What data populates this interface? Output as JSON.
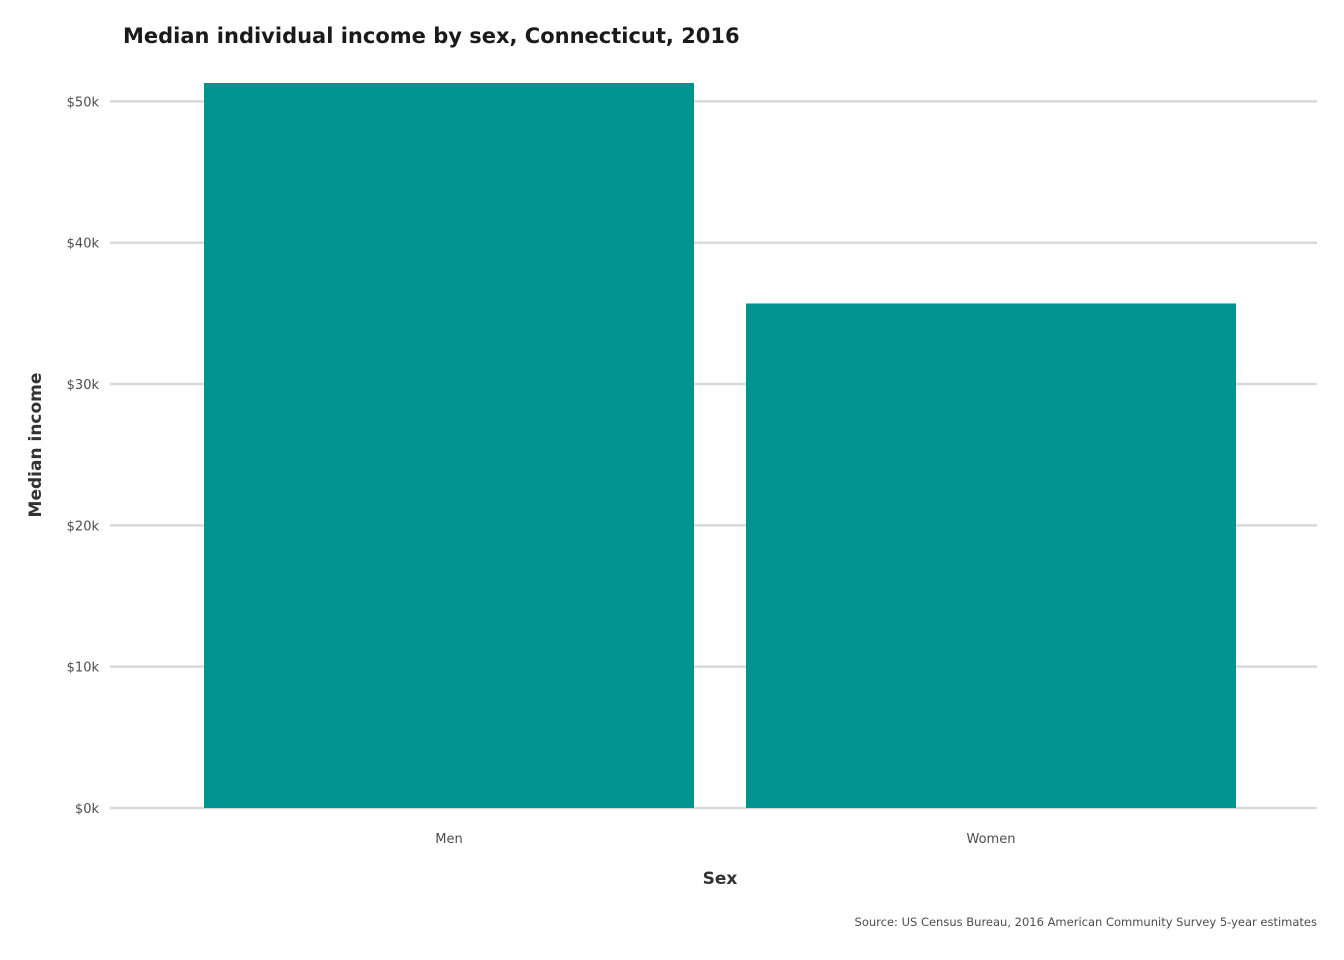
{
  "chart_data": {
    "type": "bar",
    "title": "Median individual income by sex, Connecticut, 2016",
    "xlabel": "Sex",
    "ylabel": "Median income",
    "categories": [
      "Men",
      "Women"
    ],
    "values": [
      51300,
      35700
    ],
    "ylim": [
      0,
      51300
    ],
    "yticks": [
      0,
      10000,
      20000,
      30000,
      40000,
      50000
    ],
    "ytick_labels": [
      "$0k",
      "$10k",
      "$20k",
      "$30k",
      "$40k",
      "$50k"
    ],
    "grid": "horizontal",
    "bar_color": "#009390",
    "caption": "Source: US Census Bureau, 2016 American Community Survey 5-year estimates"
  }
}
